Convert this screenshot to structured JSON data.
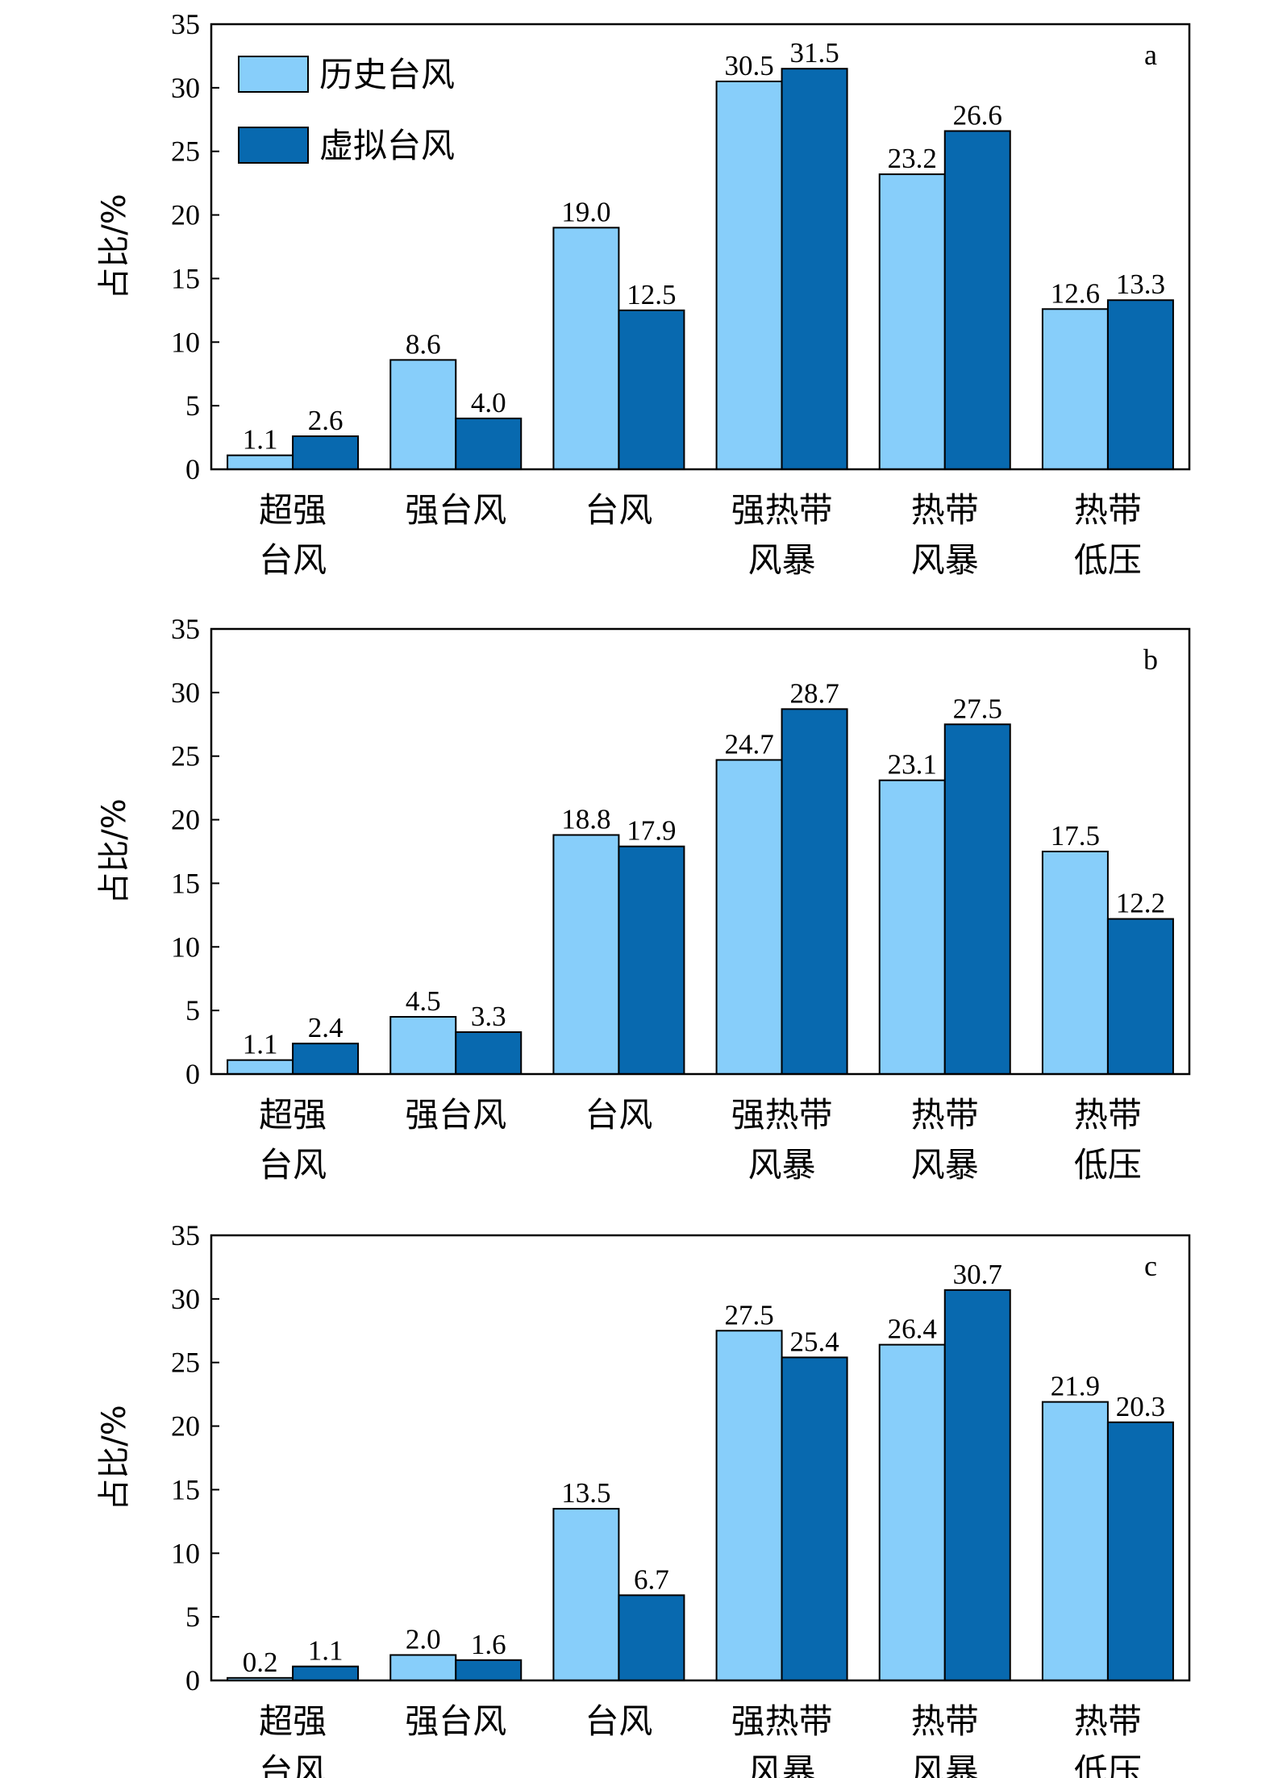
{
  "chart_data": [
    {
      "type": "bar",
      "panel": "a",
      "ylabel": "占比/%",
      "ylim": [
        0,
        35
      ],
      "yticks": [
        0,
        5,
        10,
        15,
        20,
        25,
        30,
        35
      ],
      "categories": [
        "超强\n台风",
        "强台风",
        "台风",
        "强热带\n风暴",
        "热带\n风暴",
        "热带\n低压"
      ],
      "legend": "top-left",
      "series": [
        {
          "name": "历史台风",
          "color": "#87CEFA",
          "values": [
            1.1,
            8.6,
            19.0,
            30.5,
            23.2,
            12.6
          ],
          "labels": [
            "1.1",
            "8.6",
            "19.0",
            "30.5",
            "23.2",
            "12.6"
          ]
        },
        {
          "name": "虚拟台风",
          "color": "#0869AF",
          "values": [
            2.6,
            4.0,
            12.5,
            31.5,
            26.6,
            13.3
          ],
          "labels": [
            "2.6",
            "4.0",
            "12.5",
            "31.5",
            "26.6",
            "13.3"
          ]
        }
      ]
    },
    {
      "type": "bar",
      "panel": "b",
      "ylabel": "占比/%",
      "ylim": [
        0,
        35
      ],
      "yticks": [
        0,
        5,
        10,
        15,
        20,
        25,
        30,
        35
      ],
      "categories": [
        "超强\n台风",
        "强台风",
        "台风",
        "强热带\n风暴",
        "热带\n风暴",
        "热带\n低压"
      ],
      "series": [
        {
          "name": "历史台风",
          "color": "#87CEFA",
          "values": [
            1.1,
            4.5,
            18.8,
            24.7,
            23.1,
            17.5
          ],
          "labels": [
            "1.1",
            "4.5",
            "18.8",
            "24.7",
            "23.1",
            "17.5"
          ]
        },
        {
          "name": "虚拟台风",
          "color": "#0869AF",
          "values": [
            2.4,
            3.3,
            17.9,
            28.7,
            27.5,
            12.2
          ],
          "labels": [
            "2.4",
            "3.3",
            "17.9",
            "28.7",
            "27.5",
            "12.2"
          ]
        }
      ]
    },
    {
      "type": "bar",
      "panel": "c",
      "ylabel": "占比/%",
      "ylim": [
        0,
        35
      ],
      "yticks": [
        0,
        5,
        10,
        15,
        20,
        25,
        30,
        35
      ],
      "categories": [
        "超强\n台风",
        "强台风",
        "台风",
        "强热带\n风暴",
        "热带\n风暴",
        "热带\n低压"
      ],
      "series": [
        {
          "name": "历史台风",
          "color": "#87CEFA",
          "values": [
            0.2,
            2.0,
            13.5,
            27.5,
            26.4,
            21.9
          ],
          "labels": [
            "0.2",
            "2.0",
            "13.5",
            "27.5",
            "26.4",
            "21.9"
          ]
        },
        {
          "name": "虚拟台风",
          "color": "#0869AF",
          "values": [
            1.1,
            1.6,
            6.7,
            25.4,
            30.7,
            20.3
          ],
          "labels": [
            "1.1",
            "1.6",
            "6.7",
            "25.4",
            "30.7",
            "20.3"
          ]
        }
      ]
    }
  ]
}
